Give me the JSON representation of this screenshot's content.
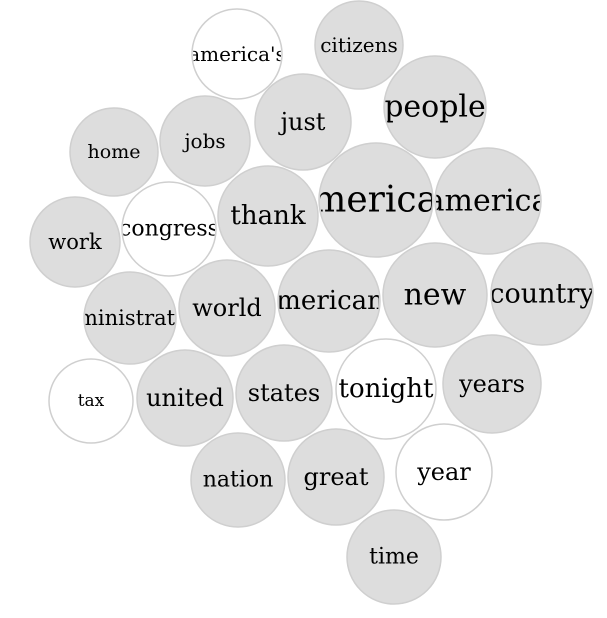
{
  "chart_data": {
    "type": "bubble",
    "title": "",
    "colors": {
      "filled": "#dddddd",
      "empty": "#ffffff",
      "stroke": "#d0d0d0",
      "text": "#000000"
    },
    "bubbles": [
      {
        "word": "america's",
        "value": 30,
        "filled": false
      },
      {
        "word": "citizens",
        "value": 30,
        "filled": true
      },
      {
        "word": "people",
        "value": 42,
        "filled": true
      },
      {
        "word": "just",
        "value": 36,
        "filled": true
      },
      {
        "word": "jobs",
        "value": 30,
        "filled": true
      },
      {
        "word": "home",
        "value": 28,
        "filled": true
      },
      {
        "word": "american",
        "value": 50,
        "filled": true
      },
      {
        "word": "america",
        "value": 44,
        "filled": true
      },
      {
        "word": "thank",
        "value": 38,
        "filled": true
      },
      {
        "word": "congress",
        "value": 32,
        "filled": false
      },
      {
        "word": "work",
        "value": 30,
        "filled": true
      },
      {
        "word": "administration",
        "value": 32,
        "filled": true
      },
      {
        "word": "world",
        "value": 35,
        "filled": true
      },
      {
        "word": "americans",
        "value": 40,
        "filled": true
      },
      {
        "word": "new",
        "value": 44,
        "filled": true
      },
      {
        "word": "country",
        "value": 41,
        "filled": true
      },
      {
        "word": "tax",
        "value": 25,
        "filled": false
      },
      {
        "word": "united",
        "value": 35,
        "filled": true
      },
      {
        "word": "states",
        "value": 35,
        "filled": true
      },
      {
        "word": "tonight",
        "value": 38,
        "filled": false
      },
      {
        "word": "years",
        "value": 36,
        "filled": true
      },
      {
        "word": "nation",
        "value": 33,
        "filled": true
      },
      {
        "word": "great",
        "value": 35,
        "filled": true
      },
      {
        "word": "year",
        "value": 35,
        "filled": false
      },
      {
        "word": "time",
        "value": 33,
        "filled": true
      }
    ]
  }
}
